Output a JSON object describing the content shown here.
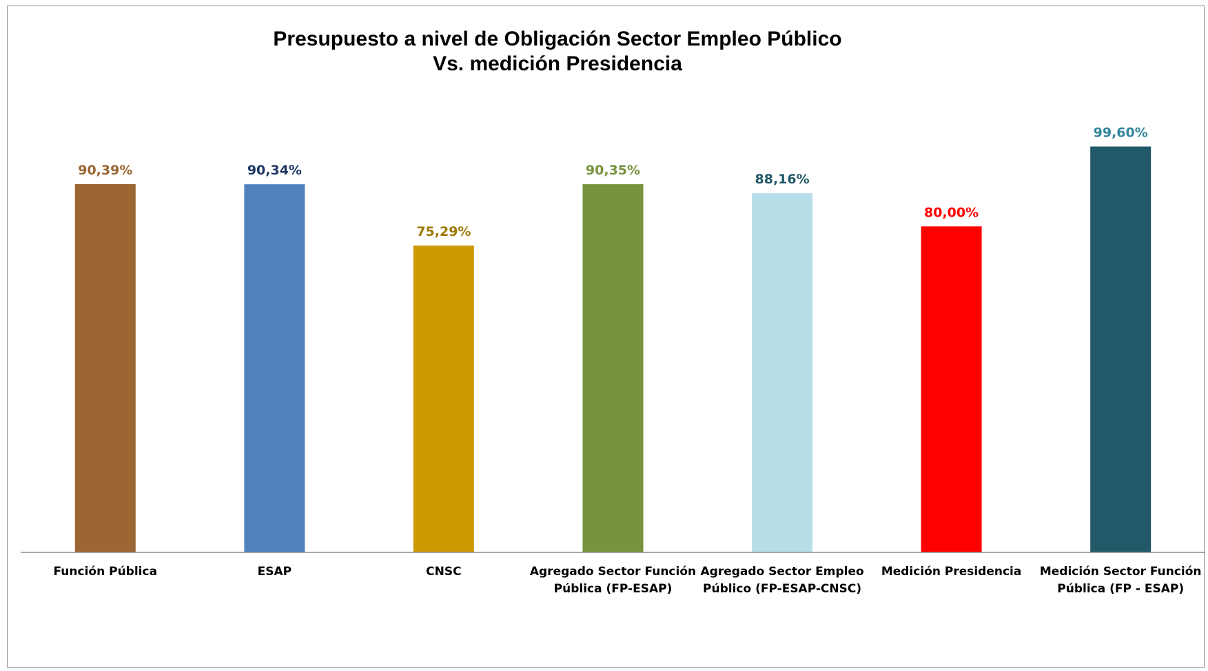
{
  "chart_data": {
    "type": "bar",
    "title_lines": [
      "Presupuesto a nivel de Obligación Sector Empleo Público",
      "Vs. medición Presidencia"
    ],
    "xlabel": "",
    "ylabel": "",
    "ylim": [
      0,
      110
    ],
    "grid": false,
    "legend": "none",
    "categories": [
      [
        "Función Pública"
      ],
      [
        "ESAP"
      ],
      [
        "CNSC"
      ],
      [
        "Agregado Sector Función",
        "Pública (FP-ESAP)"
      ],
      [
        "Agregado Sector Empleo",
        "Público (FP-ESAP-CNSC)"
      ],
      [
        "Medición Presidencia"
      ],
      [
        "Medición Sector Función",
        "Pública (FP - ESAP)"
      ]
    ],
    "values": [
      90.39,
      90.34,
      75.29,
      90.35,
      88.16,
      80.0,
      99.6
    ],
    "value_labels": [
      "90,39%",
      "90,34%",
      "75,29%",
      "90,35%",
      "88,16%",
      "80,00%",
      "99,60%"
    ],
    "bar_colors": [
      "#9b6633",
      "#4f81bd",
      "#cc9900",
      "#77933c",
      "#b7dde8",
      "#ff0000",
      "#215968"
    ],
    "label_colors": [
      "#9b6633",
      "#1f3864",
      "#9c7a00",
      "#77933c",
      "#215968",
      "#ff0000",
      "#31859c"
    ]
  }
}
